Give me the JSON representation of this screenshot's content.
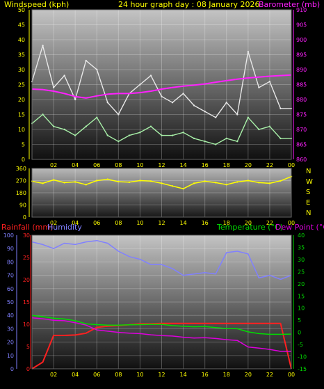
{
  "header": {
    "left": "Windspeed (kph)",
    "center": "24 hour graph day : 08 January 2026",
    "right": "Barometer (mb)"
  },
  "legend": {
    "rainfall": "Rainfall (mm)",
    "humidity": "Humidity",
    "temperature": "Temperature (°C)",
    "dewpoint": "Dew Point (°C)"
  },
  "compass": [
    "N",
    "W",
    "S",
    "E",
    "N"
  ],
  "colors": {
    "wind_gust": "#e8e8e8",
    "wind_avg": "#a8f0a8",
    "barometer": "#ff20ff",
    "direction": "#ffff00",
    "rainfall": "#ff2020",
    "humidity": "#8080ff",
    "temperature": "#00dd00",
    "dewpoint": "#dd00dd",
    "axis_text": "#ffff00",
    "tick_text": "#ffffff"
  },
  "chart_data": [
    {
      "type": "line",
      "x_ticks": [
        "02",
        "04",
        "06",
        "08",
        "10",
        "12",
        "14",
        "16",
        "18",
        "20",
        "22",
        "00"
      ],
      "y_left": {
        "label": "Windspeed (kph)",
        "ylim": [
          0,
          50
        ],
        "ticks": [
          "0",
          "5",
          "10",
          "15",
          "20",
          "25",
          "30",
          "35",
          "40",
          "45",
          "50"
        ]
      },
      "y_right": {
        "label": "Barometer (mb)",
        "ylim": [
          860,
          910
        ],
        "ticks": [
          "860",
          "865",
          "870",
          "875",
          "880",
          "885",
          "890",
          "895",
          "900",
          "905",
          "910"
        ]
      },
      "x": [
        0,
        1,
        2,
        3,
        4,
        5,
        6,
        7,
        8,
        9,
        10,
        11,
        12,
        13,
        14,
        15,
        16,
        17,
        18,
        19,
        20,
        21,
        22,
        23,
        24
      ],
      "series": [
        {
          "name": "gust",
          "axis": "left",
          "values": [
            26,
            38,
            24,
            28,
            20,
            33,
            30,
            19,
            15,
            22,
            25,
            28,
            21,
            19,
            22,
            18,
            16,
            14,
            19,
            15,
            36,
            24,
            26,
            17,
            17
          ]
        },
        {
          "name": "average",
          "axis": "left",
          "values": [
            12,
            15,
            11,
            10,
            8,
            11,
            14,
            8,
            6,
            8,
            9,
            11,
            8,
            8,
            9,
            7,
            6,
            5,
            7,
            6,
            14,
            10,
            11,
            7,
            7
          ]
        },
        {
          "name": "barometer",
          "axis": "right",
          "values": [
            883.5,
            883.3,
            882.8,
            882.0,
            881.0,
            880.5,
            881.2,
            881.8,
            882.0,
            882.0,
            882.3,
            882.8,
            883.5,
            884.0,
            884.5,
            884.8,
            885.2,
            885.8,
            886.3,
            886.8,
            887.2,
            887.5,
            887.8,
            888.0,
            888.2
          ]
        }
      ]
    },
    {
      "type": "line",
      "x_ticks": [
        "02",
        "04",
        "06",
        "08",
        "10",
        "12",
        "14",
        "16",
        "18",
        "20",
        "22",
        "00"
      ],
      "y_left": {
        "label": "",
        "ylim": [
          0,
          360
        ],
        "ticks": [
          "0",
          "90",
          "180",
          "270",
          "360"
        ]
      },
      "x": [
        0,
        1,
        2,
        3,
        4,
        5,
        6,
        7,
        8,
        9,
        10,
        11,
        12,
        13,
        14,
        15,
        16,
        17,
        18,
        19,
        20,
        21,
        22,
        23,
        24
      ],
      "series": [
        {
          "name": "direction",
          "values": [
            265,
            250,
            275,
            255,
            260,
            240,
            270,
            280,
            262,
            258,
            270,
            266,
            250,
            230,
            210,
            250,
            265,
            255,
            240,
            260,
            270,
            255,
            250,
            268,
            300
          ]
        }
      ]
    },
    {
      "type": "line",
      "x_ticks": [
        "02",
        "04",
        "06",
        "08",
        "10",
        "12",
        "14",
        "16",
        "18",
        "20",
        "22",
        "00"
      ],
      "y_humidity": {
        "label": "Humidity",
        "ylim": [
          0,
          100
        ],
        "ticks": [
          "0",
          "10",
          "20",
          "30",
          "40",
          "50",
          "60",
          "70",
          "80",
          "90",
          "100"
        ]
      },
      "y_rainfall": {
        "label": "Rainfall (mm)",
        "ylim": [
          0,
          30
        ],
        "ticks": [
          "0",
          "5",
          "10",
          "15",
          "20",
          "25",
          "30"
        ]
      },
      "y_temp": {
        "label": "Temperature (°C)",
        "ylim": [
          -15,
          40
        ],
        "ticks": [
          "-15",
          "-10",
          "-5",
          "0",
          "5",
          "10",
          "15",
          "20",
          "25",
          "30",
          "35",
          "40"
        ]
      },
      "x": [
        0,
        1,
        2,
        3,
        4,
        5,
        6,
        7,
        8,
        9,
        10,
        11,
        12,
        13,
        14,
        15,
        16,
        17,
        18,
        19,
        20,
        21,
        22,
        23,
        24
      ],
      "series": [
        {
          "name": "humidity",
          "axis": "humidity",
          "values": [
            95,
            93,
            90,
            94,
            93,
            95,
            96,
            94,
            88,
            84,
            82,
            78,
            78,
            75,
            70,
            71,
            72,
            71,
            87,
            88,
            86,
            68,
            70,
            67,
            70
          ]
        },
        {
          "name": "rainfall",
          "axis": "rainfall",
          "values": [
            0,
            1.5,
            7.5,
            7.5,
            7.6,
            8.0,
            9.3,
            9.6,
            9.7,
            9.9,
            10.1,
            10.1,
            10.2,
            10.2,
            10.2,
            10.2,
            10.2,
            10.2,
            10.2,
            10.2,
            10.2,
            10.2,
            10.2,
            10.2,
            0
          ]
        },
        {
          "name": "temperature",
          "axis": "temp",
          "values": [
            7.0,
            6.5,
            5.8,
            5.5,
            4.8,
            3.5,
            3.2,
            3.0,
            3.0,
            3.1,
            3.2,
            3.3,
            3.3,
            2.8,
            2.5,
            2.3,
            2.4,
            2.0,
            1.6,
            1.5,
            0.2,
            -0.5,
            -0.8,
            -0.8,
            -0.7
          ]
        },
        {
          "name": "dewpoint",
          "axis": "temp",
          "values": [
            6.0,
            5.6,
            5.0,
            4.8,
            4.0,
            3.0,
            1.0,
            0.5,
            0.0,
            -0.3,
            -0.5,
            -1.0,
            -1.3,
            -1.5,
            -2.0,
            -2.3,
            -2.2,
            -2.5,
            -3.0,
            -3.3,
            -6.0,
            -6.5,
            -7.0,
            -7.8,
            -7.8
          ]
        }
      ]
    }
  ]
}
